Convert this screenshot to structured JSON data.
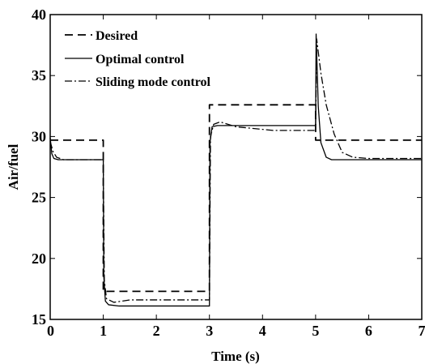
{
  "chart_data": {
    "type": "line",
    "title": "",
    "xlabel": "Time (s)",
    "ylabel": "Air/fuel",
    "xlim": [
      0,
      7
    ],
    "ylim": [
      15,
      40
    ],
    "xticks": [
      "0",
      "1",
      "2",
      "3",
      "4",
      "5",
      "6",
      "7"
    ],
    "yticks": [
      "15",
      "20",
      "25",
      "30",
      "35",
      "40"
    ],
    "grid": false,
    "legend_position": "top-left",
    "series": [
      {
        "name": "Desired",
        "style": "dashed",
        "color": "#000000",
        "points": [
          [
            0,
            29.7
          ],
          [
            1,
            29.7
          ],
          [
            1,
            17.3
          ],
          [
            3,
            17.3
          ],
          [
            3,
            32.6
          ],
          [
            5,
            32.6
          ],
          [
            5,
            29.7
          ],
          [
            7,
            29.7
          ]
        ]
      },
      {
        "name": "Optimal control",
        "style": "solid",
        "color": "#000000",
        "points": [
          [
            0,
            29.9
          ],
          [
            0.03,
            28.6
          ],
          [
            0.07,
            28.2
          ],
          [
            0.15,
            28.1
          ],
          [
            1,
            28.1
          ],
          [
            1.01,
            18.5
          ],
          [
            1.04,
            16.5
          ],
          [
            1.1,
            16.2
          ],
          [
            1.3,
            16.1
          ],
          [
            3,
            16.1
          ],
          [
            3.01,
            29.5
          ],
          [
            3.05,
            30.8
          ],
          [
            3.15,
            30.9
          ],
          [
            5,
            30.9
          ],
          [
            5.01,
            38.4
          ],
          [
            5.05,
            32.5
          ],
          [
            5.1,
            29.5
          ],
          [
            5.2,
            28.3
          ],
          [
            5.3,
            28.1
          ],
          [
            7,
            28.1
          ]
        ]
      },
      {
        "name": "Sliding mode control",
        "style": "dashdot",
        "color": "#000000",
        "points": [
          [
            0,
            29.6
          ],
          [
            0.05,
            28.8
          ],
          [
            0.12,
            28.3
          ],
          [
            0.25,
            28.1
          ],
          [
            1,
            28.1
          ],
          [
            1.02,
            18.2
          ],
          [
            1.06,
            16.7
          ],
          [
            1.2,
            16.4
          ],
          [
            1.5,
            16.6
          ],
          [
            3,
            16.6
          ],
          [
            3.02,
            30.0
          ],
          [
            3.08,
            31.0
          ],
          [
            3.2,
            31.2
          ],
          [
            3.5,
            30.8
          ],
          [
            4.2,
            30.5
          ],
          [
            5,
            30.5
          ],
          [
            5.02,
            38.0
          ],
          [
            5.1,
            35.2
          ],
          [
            5.2,
            32.6
          ],
          [
            5.35,
            30.2
          ],
          [
            5.5,
            28.7
          ],
          [
            5.7,
            28.3
          ],
          [
            6,
            28.2
          ],
          [
            7,
            28.2
          ]
        ]
      }
    ]
  }
}
